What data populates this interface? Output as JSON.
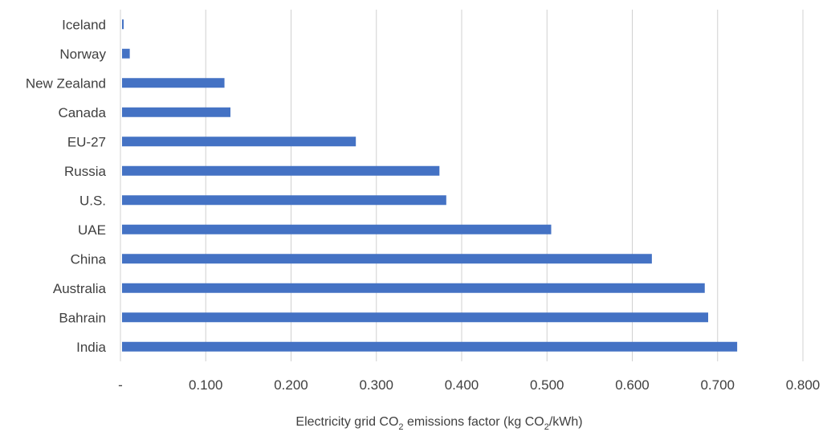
{
  "chart_data": {
    "type": "bar",
    "orientation": "horizontal",
    "categories": [
      "Iceland",
      "Norway",
      "New Zealand",
      "Canada",
      "EU-27",
      "Russia",
      "U.S.",
      "UAE",
      "China",
      "Australia",
      "Bahrain",
      "India"
    ],
    "values": [
      0.002,
      0.01,
      0.121,
      0.128,
      0.275,
      0.373,
      0.381,
      0.504,
      0.622,
      0.684,
      0.688,
      0.722
    ],
    "xlim": [
      0,
      0.8
    ],
    "x_ticks": [
      "-",
      "0.100",
      "0.200",
      "0.300",
      "0.400",
      "0.500",
      "0.600",
      "0.700",
      "0.800"
    ],
    "xlabel": {
      "p1": "Electricity grid CO",
      "s1": "2",
      "p2": " emissions factor (kg CO",
      "s2": "2",
      "p3": "/kWh)"
    },
    "title": "",
    "grid": "vertical",
    "bar_color": "#4472c4"
  }
}
